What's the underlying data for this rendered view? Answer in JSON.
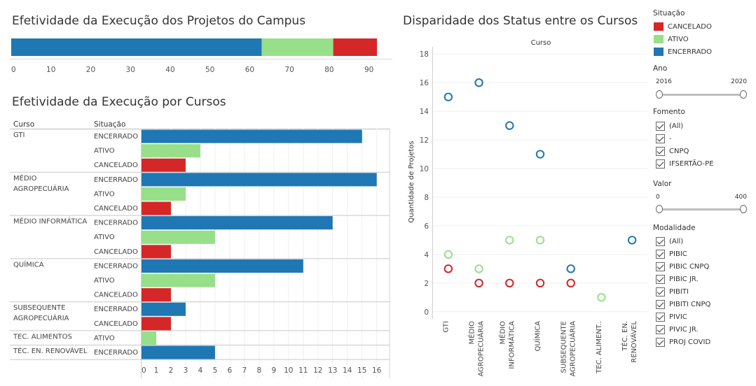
{
  "top_title": "Efetividade da Execução dos Projetos do Campus",
  "courses_title": "Efetividade da Execução por Cursos",
  "scatter_title": "Disparidade dos Status entre os Cursos",
  "colors": {
    "CANCELADO": "#d62728",
    "ATIVO": "#98df8a",
    "ENCERRADO": "#1f77b4"
  },
  "chart_data": [
    {
      "type": "bar",
      "orientation": "horizontal-stacked",
      "series": [
        {
          "name": "ENCERRADO",
          "values": [
            63
          ]
        },
        {
          "name": "ATIVO",
          "values": [
            18
          ]
        },
        {
          "name": "CANCELADO",
          "values": [
            11
          ]
        }
      ],
      "xlim": [
        0,
        92
      ],
      "ticks": [
        "0",
        "10",
        "20",
        "30",
        "40",
        "50",
        "60",
        "70",
        "80",
        "90"
      ],
      "tick_values": [
        0,
        10,
        20,
        30,
        40,
        50,
        60,
        70,
        80,
        90
      ]
    },
    {
      "type": "bar",
      "orientation": "horizontal",
      "headers": {
        "curso": "Curso",
        "situacao": "Situação"
      },
      "groups": [
        {
          "curso": [
            "GTI"
          ],
          "rows": [
            {
              "situacao": "ENCERRADO",
              "value": 15
            },
            {
              "situacao": "ATIVO",
              "value": 4
            },
            {
              "situacao": "CANCELADO",
              "value": 3
            }
          ]
        },
        {
          "curso": [
            "MÉDIO",
            "AGROPECUÁRIA"
          ],
          "rows": [
            {
              "situacao": "ENCERRADO",
              "value": 16
            },
            {
              "situacao": "ATIVO",
              "value": 3
            },
            {
              "situacao": "CANCELADO",
              "value": 2
            }
          ]
        },
        {
          "curso": [
            "MÉDIO INFORMÁTICA"
          ],
          "rows": [
            {
              "situacao": "ENCERRADO",
              "value": 13
            },
            {
              "situacao": "ATIVO",
              "value": 5
            },
            {
              "situacao": "CANCELADO",
              "value": 2
            }
          ]
        },
        {
          "curso": [
            "QUÍMICA"
          ],
          "rows": [
            {
              "situacao": "ENCERRADO",
              "value": 11
            },
            {
              "situacao": "ATIVO",
              "value": 5
            },
            {
              "situacao": "CANCELADO",
              "value": 2
            }
          ]
        },
        {
          "curso": [
            "SUBSEQUENTE",
            "AGROPECUÁRIA"
          ],
          "rows": [
            {
              "situacao": "ENCERRADO",
              "value": 3
            },
            {
              "situacao": "CANCELADO",
              "value": 2
            }
          ]
        },
        {
          "curso": [
            "TEC. ALIMENTOS"
          ],
          "rows": [
            {
              "situacao": "ATIVO",
              "value": 1
            }
          ]
        },
        {
          "curso": [
            "TÉC. EN. RENOVÁVEL"
          ],
          "rows": [
            {
              "situacao": "ENCERRADO",
              "value": 5
            }
          ]
        }
      ],
      "xlim": [
        0,
        16.3
      ],
      "ticks": [
        "0",
        "1",
        "2",
        "3",
        "4",
        "5",
        "6",
        "7",
        "8",
        "9",
        "10",
        "11",
        "12",
        "13",
        "14",
        "15",
        "16"
      ]
    },
    {
      "type": "scatter",
      "header": "Curso",
      "ylabel": "Quantidade de Projetos",
      "ylim": [
        -0.5,
        18.5
      ],
      "yticks": [
        "0",
        "2",
        "4",
        "6",
        "8",
        "10",
        "12",
        "14",
        "16",
        "18"
      ],
      "ytick_values": [
        0,
        2,
        4,
        6,
        8,
        10,
        12,
        14,
        16,
        18
      ],
      "categories": [
        [
          "GTI"
        ],
        [
          "MÉDIO",
          "AGROPECUÁRIA"
        ],
        [
          "MÉDIO",
          "INFORMÁTICA"
        ],
        [
          "QUÍMICA"
        ],
        [
          "SUBSEQUENTE",
          "AGROPECUÁRIA"
        ],
        [
          "TEC. ALIMENT.."
        ],
        [
          "TÉC. EN.",
          "RENOVÁVEL"
        ]
      ],
      "series": [
        {
          "name": "ENCERRADO",
          "values": [
            15,
            16,
            13,
            11,
            3,
            null,
            5
          ]
        },
        {
          "name": "ATIVO",
          "values": [
            4,
            3,
            5,
            5,
            null,
            1,
            null
          ]
        },
        {
          "name": "CANCELADO",
          "values": [
            3,
            2,
            2,
            2,
            2,
            null,
            null
          ]
        }
      ]
    }
  ],
  "filters": {
    "situacao": {
      "label": "Situação",
      "items": [
        "CANCELADO",
        "ATIVO",
        "ENCERRADO"
      ]
    },
    "ano": {
      "label": "Ano",
      "min_label": "2016",
      "max_label": "2020",
      "min": 2016,
      "max": 2020
    },
    "fomento": {
      "label": "Fomento",
      "items": [
        "(All)",
        "-",
        "CNPQ",
        "IFSERTÃO-PE"
      ]
    },
    "valor": {
      "label": "Valor",
      "min_label": "0",
      "max_label": "400",
      "min": 0,
      "max": 400
    },
    "modalidade": {
      "label": "Modalidade",
      "items": [
        "(All)",
        "PIBIC",
        "PIBIC CNPQ",
        "PIBIC JR.",
        "PIBITI",
        "PIBITI CNPQ",
        "PIVIC",
        "PIVIC JR.",
        "PROJ COVID"
      ]
    }
  }
}
